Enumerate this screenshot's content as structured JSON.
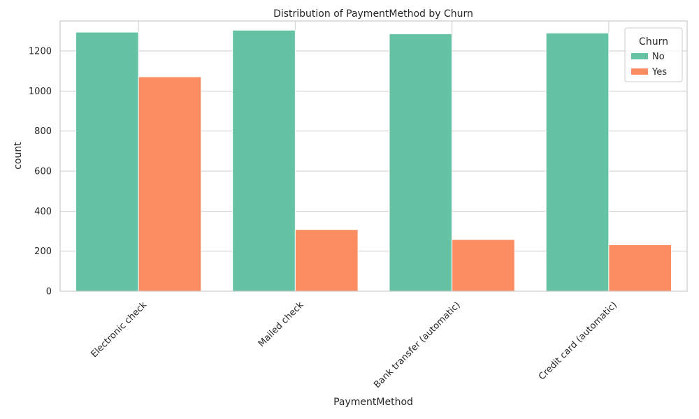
{
  "chart_data": {
    "type": "bar",
    "title": "Distribution of PaymentMethod by Churn",
    "xlabel": "PaymentMethod",
    "ylabel": "count",
    "categories": [
      "Electronic check",
      "Mailed check",
      "Bank transfer (automatic)",
      "Credit card (automatic)"
    ],
    "series": [
      {
        "name": "No",
        "values": [
          1294,
          1304,
          1286,
          1290
        ],
        "color": "#66c2a5"
      },
      {
        "name": "Yes",
        "values": [
          1071,
          308,
          258,
          232
        ],
        "color": "#fc8d62"
      }
    ],
    "ylim": [
      0,
      1350
    ],
    "yticks": [
      0,
      200,
      400,
      600,
      800,
      1000,
      1200
    ],
    "grid": true,
    "legend": {
      "title": "Churn",
      "placement": "top-right"
    }
  }
}
